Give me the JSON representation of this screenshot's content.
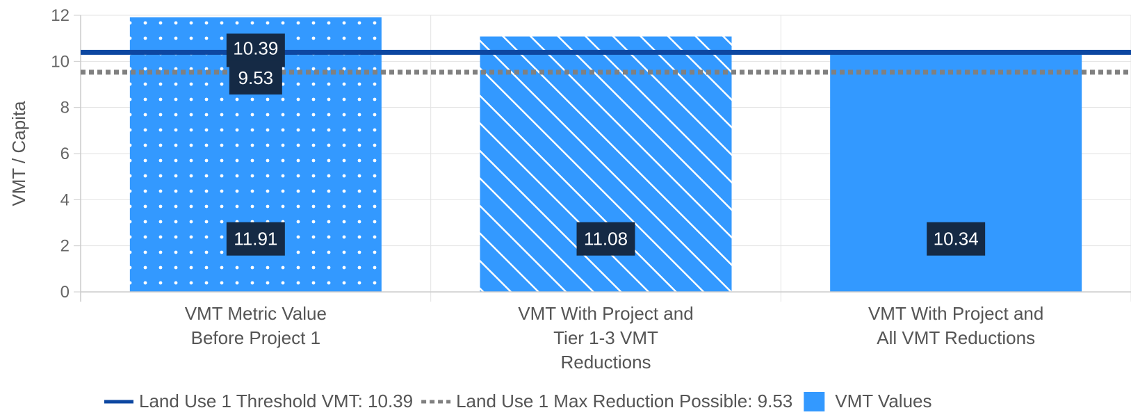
{
  "chart_data": {
    "type": "bar",
    "categories": [
      [
        "VMT Metric Value",
        "Before Project 1"
      ],
      [
        "VMT With Project and",
        "Tier 1-3 VMT",
        "Reductions"
      ],
      [
        "VMT With Project and",
        "All VMT Reductions"
      ]
    ],
    "series": [
      {
        "name": "VMT Values",
        "values": [
          11.91,
          11.08,
          10.34
        ],
        "patterns": [
          "dots",
          "diagonal-stripes",
          "solid"
        ],
        "color": "#3399ff"
      }
    ],
    "reference_lines": [
      {
        "name": "Land Use 1 Threshold VMT: 10.39",
        "value": 10.39,
        "style": "solid",
        "color": "#0d47a1",
        "label": "10.39"
      },
      {
        "name": "Land Use 1 Max Reduction Possible: 9.53",
        "value": 9.53,
        "style": "dotted",
        "color": "#808080",
        "label": "9.53"
      }
    ],
    "data_labels": [
      "11.91",
      "11.08",
      "10.34"
    ],
    "ylabel": "VMT / Capita",
    "xlabel": "",
    "ylim": [
      0,
      12
    ],
    "yticks": [
      "0",
      "2",
      "4",
      "6",
      "8",
      "10",
      "12"
    ],
    "grid": true,
    "legend_position": "bottom",
    "label_background": "#152a45"
  }
}
